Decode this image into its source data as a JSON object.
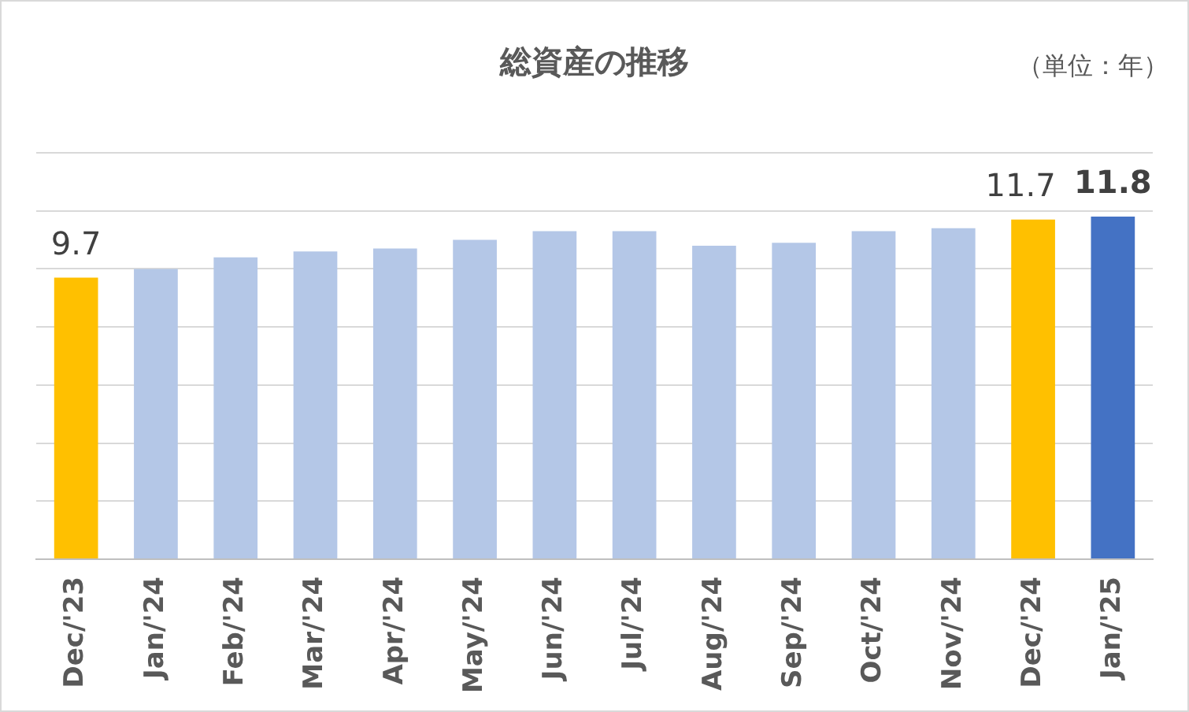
{
  "chart_data": {
    "type": "bar",
    "title": "総資産の推移",
    "annotations": [
      "（単位：年）"
    ],
    "categories": [
      "Dec/'23",
      "Jan/'24",
      "Feb/'24",
      "Mar/'24",
      "Apr/'24",
      "May/'24",
      "Jun/'24",
      "Jul/'24",
      "Aug/'24",
      "Sep/'24",
      "Oct/'24",
      "Nov/'24",
      "Dec/'24",
      "Jan/'25"
    ],
    "values": [
      9.7,
      10.0,
      10.4,
      10.6,
      10.7,
      11.0,
      11.3,
      11.3,
      10.8,
      10.9,
      11.3,
      11.4,
      11.7,
      11.8
    ],
    "colors": [
      "#ffc000",
      "#b4c7e7",
      "#b4c7e7",
      "#b4c7e7",
      "#b4c7e7",
      "#b4c7e7",
      "#b4c7e7",
      "#b4c7e7",
      "#b4c7e7",
      "#b4c7e7",
      "#b4c7e7",
      "#b4c7e7",
      "#ffc000",
      "#4472c4"
    ],
    "value_labels": [
      "9.7",
      null,
      null,
      null,
      null,
      null,
      null,
      null,
      null,
      null,
      null,
      null,
      "11.7",
      "11.8"
    ],
    "ylim": [
      0,
      14
    ],
    "yticks": [
      {
        "value": 0,
        "label": null
      },
      {
        "value": 2,
        "label": null
      },
      {
        "value": 4,
        "label": null
      },
      {
        "value": 6,
        "label": null
      },
      {
        "value": 8,
        "label": null
      },
      {
        "value": 10,
        "label": null
      },
      {
        "value": 12,
        "label": null
      },
      {
        "value": 14,
        "label": null
      }
    ],
    "grid": "y",
    "legend": false,
    "tick_labels": "x"
  }
}
